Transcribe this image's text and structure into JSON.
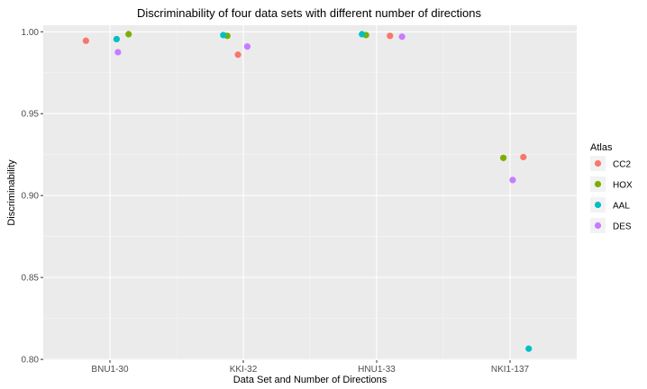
{
  "chart_data": {
    "type": "scatter",
    "title": "Discriminability of four data sets with different number of directions",
    "xlabel": "Data Set and Number of Directions",
    "ylabel": "Discriminability",
    "categories": [
      "BNU1-30",
      "KKI-32",
      "HNU1-33",
      "NKI1-137"
    ],
    "ylim": [
      0.7995,
      1.004
    ],
    "yticks": [
      "0.80",
      "0.85",
      "0.90",
      "0.95",
      "1.00"
    ],
    "ytick_values": [
      0.8,
      0.85,
      0.9,
      0.95,
      1.0
    ],
    "grid": true,
    "legend": {
      "title": "Atlas",
      "position": "right"
    },
    "series": [
      {
        "name": "CC2",
        "color": "#f8766d",
        "values": [
          0.9945,
          0.986,
          0.9975,
          0.9235
        ],
        "jitter": [
          -0.18,
          -0.04,
          0.1,
          0.1
        ]
      },
      {
        "name": "HOX",
        "color": "#7cae00",
        "values": [
          0.9985,
          0.9975,
          0.998,
          0.923
        ],
        "jitter": [
          0.14,
          -0.12,
          -0.08,
          -0.05
        ]
      },
      {
        "name": "AAL",
        "color": "#00bfc4",
        "values": [
          0.9955,
          0.998,
          0.9985,
          0.8065
        ],
        "jitter": [
          0.05,
          -0.15,
          -0.11,
          0.14
        ]
      },
      {
        "name": "DES",
        "color": "#c77cff",
        "values": [
          0.9875,
          0.991,
          0.997,
          0.9095
        ],
        "jitter": [
          0.06,
          0.03,
          0.19,
          0.02
        ]
      }
    ]
  }
}
